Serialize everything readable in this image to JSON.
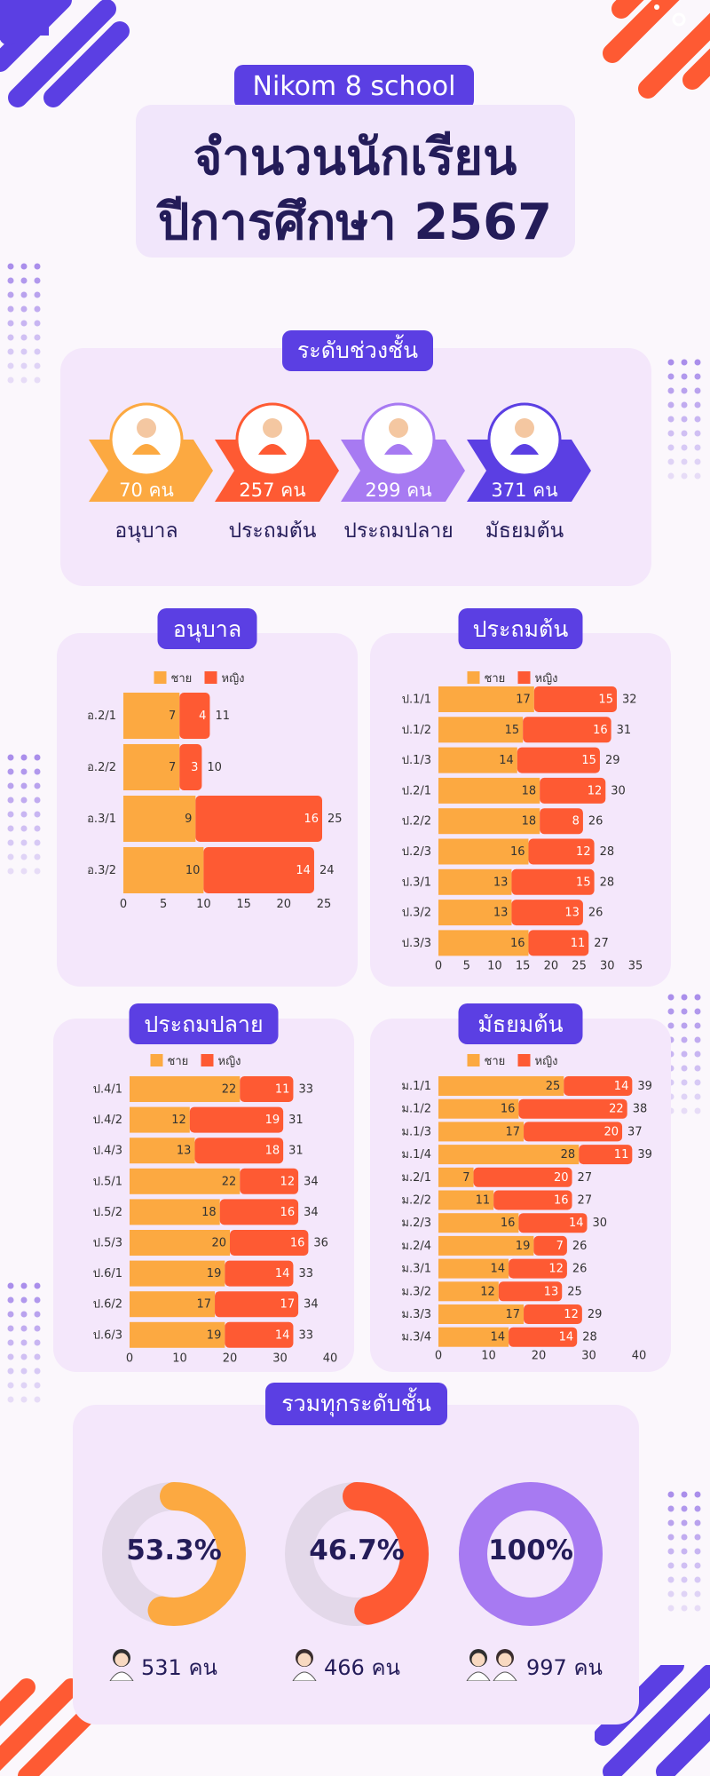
{
  "header": {
    "school": "Nikom 8 school",
    "title_line1": "จำนวนนักเรียน",
    "title_line2": "ปีการศึกษา 2567"
  },
  "levels": {
    "heading": "ระดับช่วงชั้น",
    "items": [
      {
        "label": "อนุบาล",
        "count": "70 คน",
        "color": "#fca941"
      },
      {
        "label": "ประถมต้น",
        "count": "257 คน",
        "color": "#fe5a33"
      },
      {
        "label": "ประถมปลาย",
        "count": "299 คน",
        "color": "#a77af2"
      },
      {
        "label": "มัธยมต้น",
        "count": "371 คน",
        "color": "#5b3fe3"
      }
    ]
  },
  "legend": {
    "male": "ชาย",
    "female": "หญิง"
  },
  "colors": {
    "male": "#fca941",
    "female": "#fe5a33",
    "accent": "#5b3fe3",
    "total": "#a77af2",
    "track": "#e3d8e9"
  },
  "chart_data": [
    {
      "type": "bar",
      "title": "อนุบาล",
      "orientation": "horizontal",
      "stacked": true,
      "categories": [
        "อ.2/1",
        "อ.2/2",
        "อ.3/1",
        "อ.3/2"
      ],
      "series": [
        {
          "name": "ชาย",
          "values": [
            7,
            7,
            9,
            10
          ]
        },
        {
          "name": "หญิง",
          "values": [
            4,
            3,
            16,
            14
          ]
        }
      ],
      "totals": [
        11,
        10,
        25,
        24
      ],
      "xlim": [
        0,
        25
      ],
      "xticks": [
        0,
        5,
        10,
        15,
        20,
        25
      ]
    },
    {
      "type": "bar",
      "title": "ประถมต้น",
      "orientation": "horizontal",
      "stacked": true,
      "categories": [
        "ป.1/1",
        "ป.1/2",
        "ป.1/3",
        "ป.2/1",
        "ป.2/2",
        "ป.2/3",
        "ป.3/1",
        "ป.3/2",
        "ป.3/3"
      ],
      "series": [
        {
          "name": "ชาย",
          "values": [
            17,
            15,
            14,
            18,
            18,
            16,
            13,
            13,
            16
          ]
        },
        {
          "name": "หญิง",
          "values": [
            15,
            16,
            15,
            12,
            8,
            12,
            15,
            13,
            11
          ]
        }
      ],
      "totals": [
        32,
        31,
        29,
        30,
        26,
        28,
        28,
        26,
        27
      ],
      "xlim": [
        0,
        35
      ],
      "xticks": [
        0,
        5,
        10,
        15,
        20,
        25,
        30,
        35
      ]
    },
    {
      "type": "bar",
      "title": "ประถมปลาย",
      "orientation": "horizontal",
      "stacked": true,
      "categories": [
        "ป.4/1",
        "ป.4/2",
        "ป.4/3",
        "ป.5/1",
        "ป.5/2",
        "ป.5/3",
        "ป.6/1",
        "ป.6/2",
        "ป.6/3"
      ],
      "series": [
        {
          "name": "ชาย",
          "values": [
            22,
            12,
            13,
            22,
            18,
            20,
            19,
            17,
            19
          ]
        },
        {
          "name": "หญิง",
          "values": [
            11,
            19,
            18,
            12,
            16,
            16,
            14,
            17,
            14
          ]
        }
      ],
      "totals": [
        33,
        31,
        31,
        34,
        34,
        36,
        33,
        34,
        33
      ],
      "xlim": [
        0,
        40
      ],
      "xticks": [
        0,
        10,
        20,
        30,
        40
      ]
    },
    {
      "type": "bar",
      "title": "มัธยมต้น",
      "orientation": "horizontal",
      "stacked": true,
      "categories": [
        "ม.1/1",
        "ม.1/2",
        "ม.1/3",
        "ม.1/4",
        "ม.2/1",
        "ม.2/2",
        "ม.2/3",
        "ม.2/4",
        "ม.3/1",
        "ม.3/2",
        "ม.3/3",
        "ม.3/4"
      ],
      "series": [
        {
          "name": "ชาย",
          "values": [
            25,
            16,
            17,
            28,
            7,
            11,
            16,
            19,
            14,
            12,
            17,
            14
          ]
        },
        {
          "name": "หญิง",
          "values": [
            14,
            22,
            20,
            11,
            20,
            16,
            14,
            7,
            12,
            13,
            12,
            14
          ]
        }
      ],
      "totals": [
        39,
        38,
        37,
        39,
        27,
        27,
        30,
        26,
        26,
        25,
        29,
        28
      ],
      "xlim": [
        0,
        40
      ],
      "xticks": [
        0,
        10,
        20,
        30,
        40
      ]
    }
  ],
  "totals": {
    "heading": "รวมทุกระดับชั้น",
    "items": [
      {
        "percent": 53.3,
        "percent_label": "53.3%",
        "count": "531 คน",
        "kind": "male"
      },
      {
        "percent": 46.7,
        "percent_label": "46.7%",
        "count": "466 คน",
        "kind": "female"
      },
      {
        "percent": 100,
        "percent_label": "100%",
        "count": "997 คน",
        "kind": "all"
      }
    ]
  }
}
